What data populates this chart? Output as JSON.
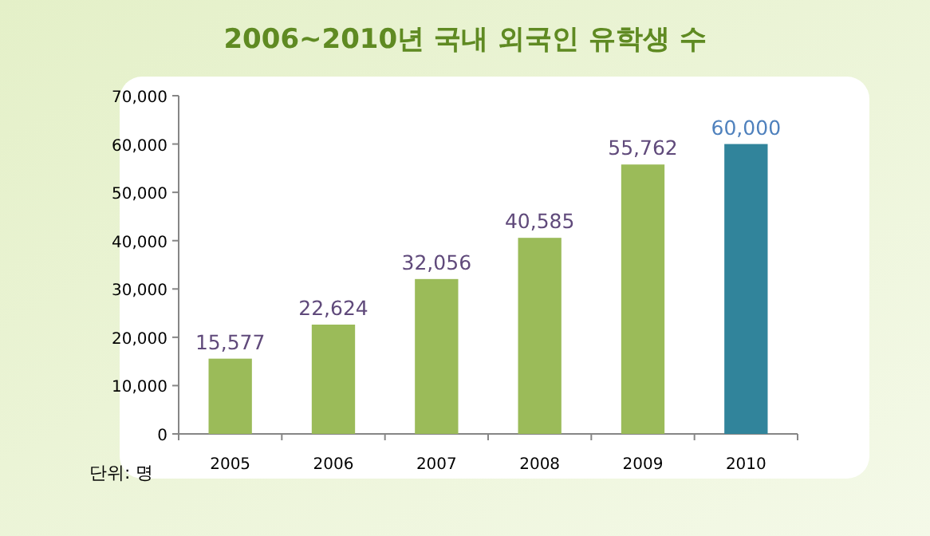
{
  "chart_data": {
    "type": "bar",
    "title": "2006~2010년 국내 외국인 유학생 수",
    "categories": [
      "2005",
      "2006",
      "2007",
      "2008",
      "2009",
      "2010"
    ],
    "values": [
      15577,
      22624,
      32056,
      40585,
      55762,
      60000
    ],
    "colors": [
      "#9bbb59",
      "#9bbb59",
      "#9bbb59",
      "#9bbb59",
      "#9bbb59",
      "#31849b"
    ],
    "value_labels": [
      "15,577",
      "22,624",
      "32,056",
      "40,585",
      "55,762",
      "60,000"
    ],
    "ylim": [
      0,
      70000
    ],
    "yticks": [
      {
        "value": 0,
        "label": "0"
      },
      {
        "value": 10000,
        "label": "10,000"
      },
      {
        "value": 20000,
        "label": "20,000"
      },
      {
        "value": 30000,
        "label": "30,000"
      },
      {
        "value": 40000,
        "label": "40,000"
      },
      {
        "value": 50000,
        "label": "50,000"
      },
      {
        "value": 60000,
        "label": "60,000"
      },
      {
        "value": 70000,
        "label": "70,000"
      }
    ],
    "annotations": [
      "단위: 명"
    ],
    "grid": false
  }
}
